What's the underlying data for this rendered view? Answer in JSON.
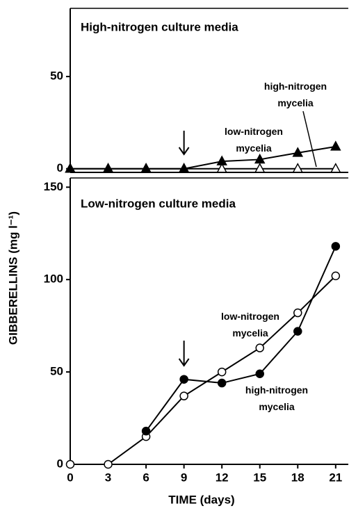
{
  "chart_data": [
    {
      "type": "line",
      "title": "High-nitrogen culture media",
      "xlim": [
        0,
        22
      ],
      "ylim": [
        -2,
        87
      ],
      "yticks": [
        0,
        50
      ],
      "arrow_x": 9,
      "series": [
        {
          "name": "high-nitrogen mycelia",
          "color": "#000000",
          "marker": "triangle",
          "filled": false,
          "x": [
            0,
            3,
            6,
            9,
            12,
            15,
            18,
            21
          ],
          "values": [
            0,
            0,
            0,
            0,
            0,
            0,
            0,
            0
          ]
        },
        {
          "name": "low-nitrogen mycelia",
          "color": "#000000",
          "marker": "triangle",
          "filled": true,
          "x": [
            0,
            3,
            6,
            9,
            12,
            15,
            18,
            21
          ],
          "values": [
            0,
            0,
            0,
            0,
            4,
            5,
            8.6,
            12
          ]
        }
      ]
    },
    {
      "type": "line",
      "title": "Low-nitrogen culture media",
      "xlabel": "TIME (days)",
      "ylabel": "GIBBERELLINS (mg l⁻¹)",
      "xlim": [
        0,
        22
      ],
      "ylim": [
        0,
        155
      ],
      "xticks": [
        0,
        3,
        6,
        9,
        12,
        15,
        18,
        21
      ],
      "yticks": [
        0,
        50,
        100,
        150
      ],
      "arrow_x": 9,
      "series": [
        {
          "name": "low-nitrogen mycelia",
          "color": "#000000",
          "marker": "circle",
          "filled": false,
          "x": [
            0,
            3,
            6,
            9,
            12,
            15,
            18,
            21
          ],
          "values": [
            0,
            0,
            15,
            37,
            50,
            63,
            82,
            102
          ]
        },
        {
          "name": "high-nitrogen mycelia",
          "color": "#000000",
          "marker": "circle",
          "filled": true,
          "x": [
            6,
            9,
            12,
            15,
            18,
            21
          ],
          "values": [
            18,
            46,
            44,
            49,
            72,
            118
          ]
        }
      ]
    }
  ]
}
